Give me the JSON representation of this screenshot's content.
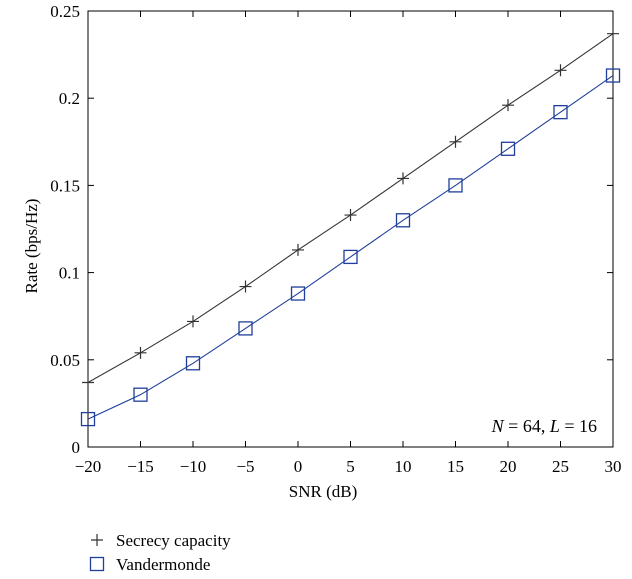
{
  "chart_data": {
    "type": "line",
    "xlabel": "SNR (dB)",
    "ylabel": "Rate (bps/Hz)",
    "xlim": [
      -20,
      30
    ],
    "ylim": [
      0,
      0.25
    ],
    "xticks": [
      -20,
      -15,
      -10,
      -5,
      0,
      5,
      10,
      15,
      20,
      25,
      30
    ],
    "yticks": [
      0,
      0.05,
      0.1,
      0.15,
      0.2,
      0.25
    ],
    "xtick_labels": [
      "−20",
      "−15",
      "−10",
      "−5",
      "0",
      "5",
      "10",
      "15",
      "20",
      "25",
      "30"
    ],
    "ytick_labels": [
      "0",
      "0.05",
      "0.1",
      "0.15",
      "0.2",
      "0.25"
    ],
    "grid": false,
    "legend_position": "below-left",
    "annotation": {
      "text": "N = 64, L = 16",
      "parts": [
        {
          "t": "N",
          "italic": true
        },
        {
          "t": " = 64, ",
          "italic": false
        },
        {
          "t": "L",
          "italic": true
        },
        {
          "t": " = 16",
          "italic": false
        }
      ]
    },
    "x": [
      -20,
      -15,
      -10,
      -5,
      0,
      5,
      10,
      15,
      20,
      25,
      30
    ],
    "series": [
      {
        "name": "Secrecy capacity",
        "marker": "plus",
        "color": "#333333",
        "values": [
          0.037,
          0.054,
          0.072,
          0.092,
          0.113,
          0.133,
          0.154,
          0.175,
          0.196,
          0.216,
          0.237
        ]
      },
      {
        "name": "Vandermonde",
        "marker": "square",
        "color": "#1f3f9a",
        "values": [
          0.016,
          0.03,
          0.048,
          0.068,
          0.088,
          0.109,
          0.13,
          0.15,
          0.171,
          0.192,
          0.213
        ]
      }
    ]
  }
}
